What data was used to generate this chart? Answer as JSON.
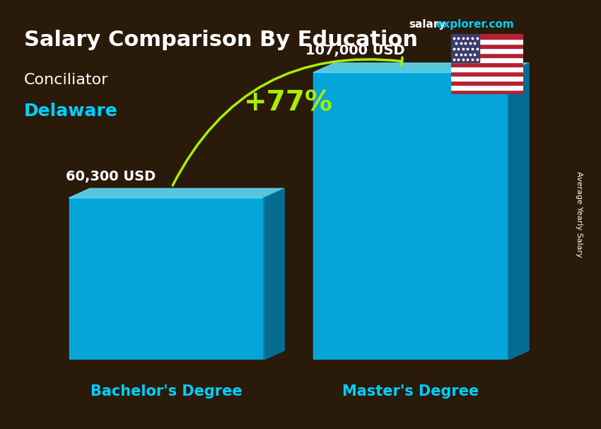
{
  "title_main": "Salary Comparison By Education",
  "title_salary": "salary",
  "title_explorer": "explorer.com",
  "subtitle1": "Conciliator",
  "subtitle2": "Delaware",
  "categories": [
    "Bachelor's Degree",
    "Master's Degree"
  ],
  "values": [
    60300,
    107000
  ],
  "value_labels": [
    "60,300 USD",
    "107,000 USD"
  ],
  "pct_change": "+77%",
  "bar_color_main": "#00BFFF",
  "bar_color_top": "#8B4513",
  "bar_width": 0.35,
  "bg_color": "#2a1a0a",
  "text_color_white": "#FFFFFF",
  "text_color_cyan": "#00CFFF",
  "text_color_green": "#AAEE00",
  "ylabel": "Average Yearly Salary",
  "ylim": [
    0,
    130000
  ],
  "title_fontsize": 22,
  "subtitle1_fontsize": 16,
  "subtitle2_fontsize": 18,
  "value_label_fontsize": 14,
  "category_fontsize": 15,
  "pct_fontsize": 28
}
